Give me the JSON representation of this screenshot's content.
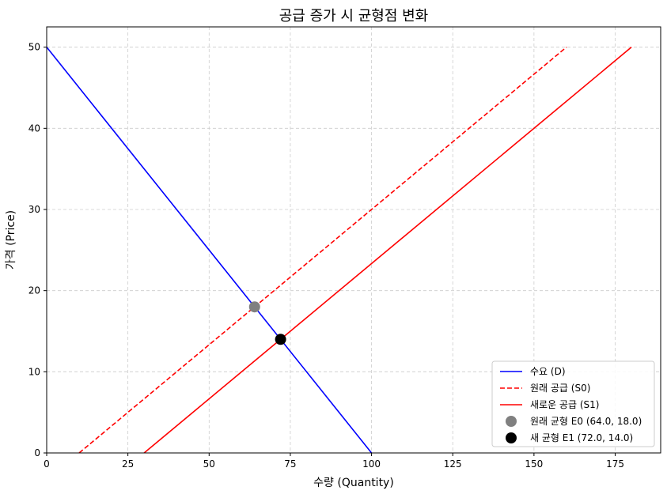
{
  "chart_data": {
    "type": "line",
    "title": "공급 증가 시 균형점 변화",
    "xlabel": "수량 (Quantity)",
    "ylabel": "가격 (Price)",
    "xlim": [
      0,
      189
    ],
    "ylim": [
      0,
      52.5
    ],
    "xticks": [
      0,
      25,
      50,
      75,
      100,
      125,
      150,
      175
    ],
    "yticks": [
      0,
      10,
      20,
      30,
      40,
      50
    ],
    "grid": true,
    "grid_style": "dashed",
    "legend_position": "bottom-right",
    "series": [
      {
        "name": "수요 (D)",
        "kind": "line",
        "color": "#0000ff",
        "dash": "solid",
        "points": [
          [
            0,
            50
          ],
          [
            100,
            0
          ]
        ]
      },
      {
        "name": "원래 공급 (S0)",
        "kind": "line",
        "color": "#ff0000",
        "dash": "dashed",
        "points": [
          [
            10,
            0
          ],
          [
            160,
            50
          ]
        ]
      },
      {
        "name": "새로운 공급 (S1)",
        "kind": "line",
        "color": "#ff0000",
        "dash": "solid",
        "points": [
          [
            30,
            0
          ],
          [
            180,
            50
          ]
        ]
      },
      {
        "name": "원래 균형 E0 (64.0, 18.0)",
        "kind": "point",
        "color": "#808080",
        "points": [
          [
            64,
            18
          ]
        ]
      },
      {
        "name": "새 균형 E1 (72.0, 14.0)",
        "kind": "point",
        "color": "#000000",
        "points": [
          [
            72,
            14
          ]
        ]
      }
    ]
  }
}
